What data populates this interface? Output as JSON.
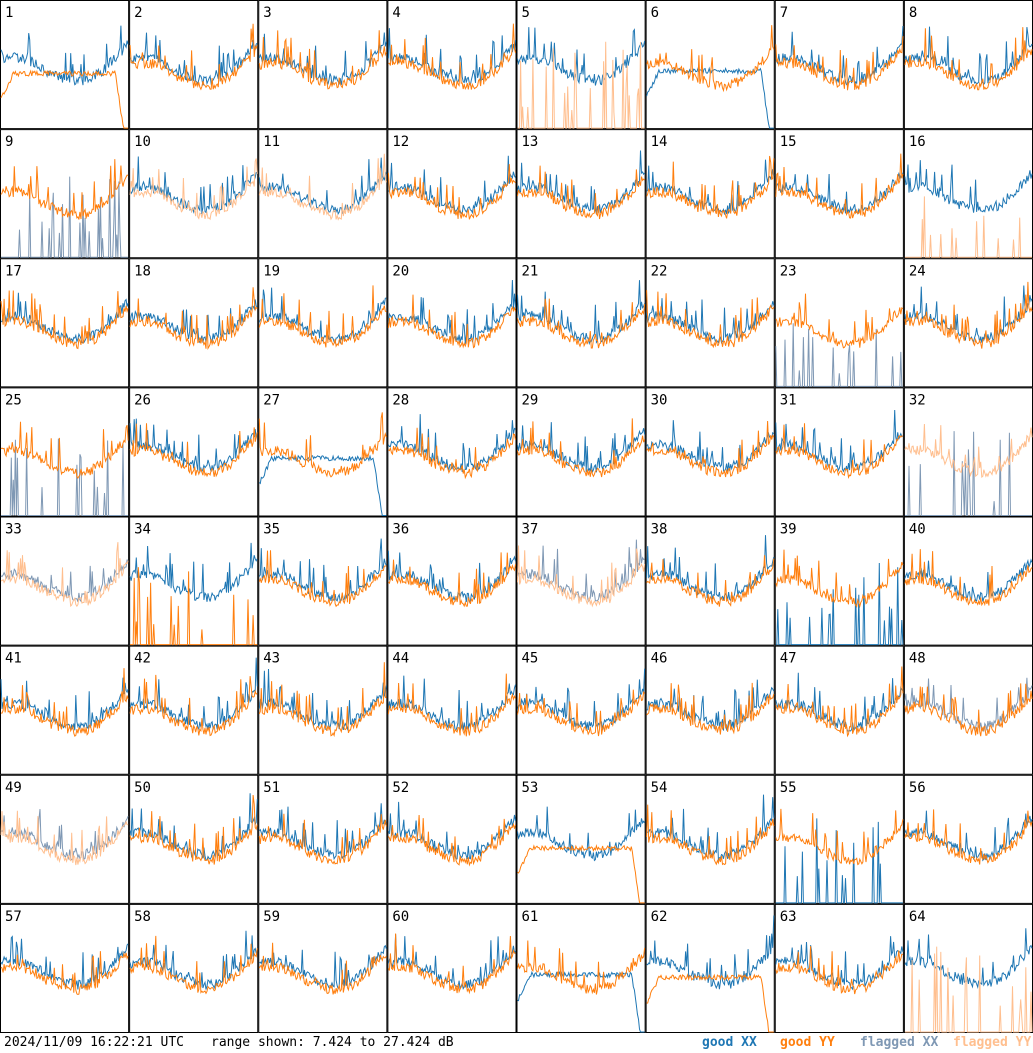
{
  "timestamp": "2024/11/09 16:22:21 UTC",
  "range_label": "range shown: 7.424 to 27.424 dB",
  "legend": [
    {
      "label": "good XX",
      "color": "#1f77b4"
    },
    {
      "label": "good YY",
      "color": "#ff7f0e"
    },
    {
      "label": "flagged XX",
      "color": "#7f98b4"
    },
    {
      "label": "flagged YY",
      "color": "#ffbf8f"
    }
  ],
  "chart_data": {
    "type": "line",
    "title": "",
    "ylabel": "dB",
    "ylim": [
      7.424,
      27.424
    ],
    "grid_layout": [
      8,
      8
    ],
    "panels": [
      {
        "id": "1",
        "xx": "good",
        "yy": "good",
        "xx_shape": "bowl",
        "yy_shape": "rolloff"
      },
      {
        "id": "2",
        "xx": "good",
        "yy": "good",
        "xx_shape": "bowl",
        "yy_shape": "bowl"
      },
      {
        "id": "3",
        "xx": "good",
        "yy": "good",
        "xx_shape": "bowl",
        "yy_shape": "bowl"
      },
      {
        "id": "4",
        "xx": "good",
        "yy": "good",
        "xx_shape": "bowl",
        "yy_shape": "bowl"
      },
      {
        "id": "5",
        "xx": "good",
        "yy": "flagged",
        "xx_shape": "bowl",
        "yy_shape": "spikes"
      },
      {
        "id": "6",
        "xx": "good",
        "yy": "good",
        "xx_shape": "rolloff",
        "yy_shape": "bowl"
      },
      {
        "id": "7",
        "xx": "good",
        "yy": "good",
        "xx_shape": "bowl",
        "yy_shape": "bowl"
      },
      {
        "id": "8",
        "xx": "good",
        "yy": "good",
        "xx_shape": "bowl",
        "yy_shape": "bowl"
      },
      {
        "id": "9",
        "xx": "flagged",
        "yy": "good",
        "xx_shape": "spikes",
        "yy_shape": "bowl"
      },
      {
        "id": "10",
        "xx": "good",
        "yy": "flagged",
        "xx_shape": "bowl",
        "yy_shape": "bowl"
      },
      {
        "id": "11",
        "xx": "good",
        "yy": "flagged",
        "xx_shape": "bowl",
        "yy_shape": "bowl"
      },
      {
        "id": "12",
        "xx": "good",
        "yy": "good",
        "xx_shape": "bowl",
        "yy_shape": "bowl"
      },
      {
        "id": "13",
        "xx": "good",
        "yy": "good",
        "xx_shape": "bowl",
        "yy_shape": "bowl"
      },
      {
        "id": "14",
        "xx": "good",
        "yy": "good",
        "xx_shape": "bowl",
        "yy_shape": "bowl"
      },
      {
        "id": "15",
        "xx": "good",
        "yy": "good",
        "xx_shape": "bowl",
        "yy_shape": "bowl"
      },
      {
        "id": "16",
        "xx": "good",
        "yy": "flagged",
        "xx_shape": "bowl",
        "yy_shape": "spikes"
      },
      {
        "id": "17",
        "xx": "good",
        "yy": "good",
        "xx_shape": "bowl",
        "yy_shape": "bowl"
      },
      {
        "id": "18",
        "xx": "good",
        "yy": "good",
        "xx_shape": "bowl",
        "yy_shape": "bowl"
      },
      {
        "id": "19",
        "xx": "good",
        "yy": "good",
        "xx_shape": "bowl",
        "yy_shape": "bowl"
      },
      {
        "id": "20",
        "xx": "good",
        "yy": "good",
        "xx_shape": "bowl",
        "yy_shape": "bowl"
      },
      {
        "id": "21",
        "xx": "good",
        "yy": "good",
        "xx_shape": "bowl",
        "yy_shape": "bowl"
      },
      {
        "id": "22",
        "xx": "good",
        "yy": "good",
        "xx_shape": "bowl",
        "yy_shape": "bowl"
      },
      {
        "id": "23",
        "xx": "flagged",
        "yy": "good",
        "xx_shape": "spikes",
        "yy_shape": "bowl"
      },
      {
        "id": "24",
        "xx": "good",
        "yy": "good",
        "xx_shape": "bowl",
        "yy_shape": "bowl"
      },
      {
        "id": "25",
        "xx": "flagged",
        "yy": "good",
        "xx_shape": "spikes",
        "yy_shape": "bowl"
      },
      {
        "id": "26",
        "xx": "good",
        "yy": "good",
        "xx_shape": "bowl",
        "yy_shape": "bowl"
      },
      {
        "id": "27",
        "xx": "good",
        "yy": "good",
        "xx_shape": "rolloff",
        "yy_shape": "bowl"
      },
      {
        "id": "28",
        "xx": "good",
        "yy": "good",
        "xx_shape": "bowl",
        "yy_shape": "bowl"
      },
      {
        "id": "29",
        "xx": "good",
        "yy": "good",
        "xx_shape": "bowl",
        "yy_shape": "bowl"
      },
      {
        "id": "30",
        "xx": "good",
        "yy": "good",
        "xx_shape": "bowl",
        "yy_shape": "bowl"
      },
      {
        "id": "31",
        "xx": "good",
        "yy": "good",
        "xx_shape": "bowl",
        "yy_shape": "bowl"
      },
      {
        "id": "32",
        "xx": "flagged",
        "yy": "flagged",
        "xx_shape": "spikes",
        "yy_shape": "bowl"
      },
      {
        "id": "33",
        "xx": "flagged",
        "yy": "flagged",
        "xx_shape": "bowl",
        "yy_shape": "bowl"
      },
      {
        "id": "34",
        "xx": "good",
        "yy": "good",
        "xx_shape": "bowl",
        "yy_shape": "spikes"
      },
      {
        "id": "35",
        "xx": "good",
        "yy": "good",
        "xx_shape": "bowl",
        "yy_shape": "bowl"
      },
      {
        "id": "36",
        "xx": "good",
        "yy": "good",
        "xx_shape": "bowl",
        "yy_shape": "bowl"
      },
      {
        "id": "37",
        "xx": "flagged",
        "yy": "flagged",
        "xx_shape": "bowl",
        "yy_shape": "bowl"
      },
      {
        "id": "38",
        "xx": "good",
        "yy": "good",
        "xx_shape": "bowl",
        "yy_shape": "bowl"
      },
      {
        "id": "39",
        "xx": "good",
        "yy": "good",
        "xx_shape": "spikes",
        "yy_shape": "bowl"
      },
      {
        "id": "40",
        "xx": "good",
        "yy": "good",
        "xx_shape": "bowl",
        "yy_shape": "bowl"
      },
      {
        "id": "41",
        "xx": "good",
        "yy": "good",
        "xx_shape": "bowl",
        "yy_shape": "bowl"
      },
      {
        "id": "42",
        "xx": "good",
        "yy": "good",
        "xx_shape": "bowl",
        "yy_shape": "bowl"
      },
      {
        "id": "43",
        "xx": "good",
        "yy": "good",
        "xx_shape": "bowl",
        "yy_shape": "bowl"
      },
      {
        "id": "44",
        "xx": "good",
        "yy": "good",
        "xx_shape": "bowl",
        "yy_shape": "bowl"
      },
      {
        "id": "45",
        "xx": "good",
        "yy": "good",
        "xx_shape": "bowl",
        "yy_shape": "bowl"
      },
      {
        "id": "46",
        "xx": "good",
        "yy": "good",
        "xx_shape": "bowl",
        "yy_shape": "bowl"
      },
      {
        "id": "47",
        "xx": "good",
        "yy": "good",
        "xx_shape": "bowl",
        "yy_shape": "bowl"
      },
      {
        "id": "48",
        "xx": "flagged",
        "yy": "good",
        "xx_shape": "bowl",
        "yy_shape": "bowl"
      },
      {
        "id": "49",
        "xx": "flagged",
        "yy": "flagged",
        "xx_shape": "bowl",
        "yy_shape": "bowl"
      },
      {
        "id": "50",
        "xx": "good",
        "yy": "good",
        "xx_shape": "bowl",
        "yy_shape": "bowl"
      },
      {
        "id": "51",
        "xx": "good",
        "yy": "good",
        "xx_shape": "bowl",
        "yy_shape": "bowl"
      },
      {
        "id": "52",
        "xx": "good",
        "yy": "good",
        "xx_shape": "bowl",
        "yy_shape": "bowl"
      },
      {
        "id": "53",
        "xx": "good",
        "yy": "good",
        "xx_shape": "bowl",
        "yy_shape": "rolloff"
      },
      {
        "id": "54",
        "xx": "good",
        "yy": "good",
        "xx_shape": "bowl",
        "yy_shape": "bowl"
      },
      {
        "id": "55",
        "xx": "good",
        "yy": "good",
        "xx_shape": "spikes",
        "yy_shape": "bowl"
      },
      {
        "id": "56",
        "xx": "good",
        "yy": "good",
        "xx_shape": "bowl",
        "yy_shape": "bowl"
      },
      {
        "id": "57",
        "xx": "good",
        "yy": "good",
        "xx_shape": "bowl",
        "yy_shape": "bowl"
      },
      {
        "id": "58",
        "xx": "good",
        "yy": "good",
        "xx_shape": "bowl",
        "yy_shape": "bowl"
      },
      {
        "id": "59",
        "xx": "good",
        "yy": "good",
        "xx_shape": "bowl",
        "yy_shape": "bowl"
      },
      {
        "id": "60",
        "xx": "good",
        "yy": "good",
        "xx_shape": "bowl",
        "yy_shape": "bowl"
      },
      {
        "id": "61",
        "xx": "good",
        "yy": "good",
        "xx_shape": "rolloff",
        "yy_shape": "bowl"
      },
      {
        "id": "62",
        "xx": "good",
        "yy": "good",
        "xx_shape": "bowl",
        "yy_shape": "rolloff"
      },
      {
        "id": "63",
        "xx": "good",
        "yy": "good",
        "xx_shape": "bowl",
        "yy_shape": "bowl"
      },
      {
        "id": "64",
        "xx": "good",
        "yy": "flagged",
        "xx_shape": "bowl",
        "yy_shape": "spikes"
      }
    ]
  }
}
